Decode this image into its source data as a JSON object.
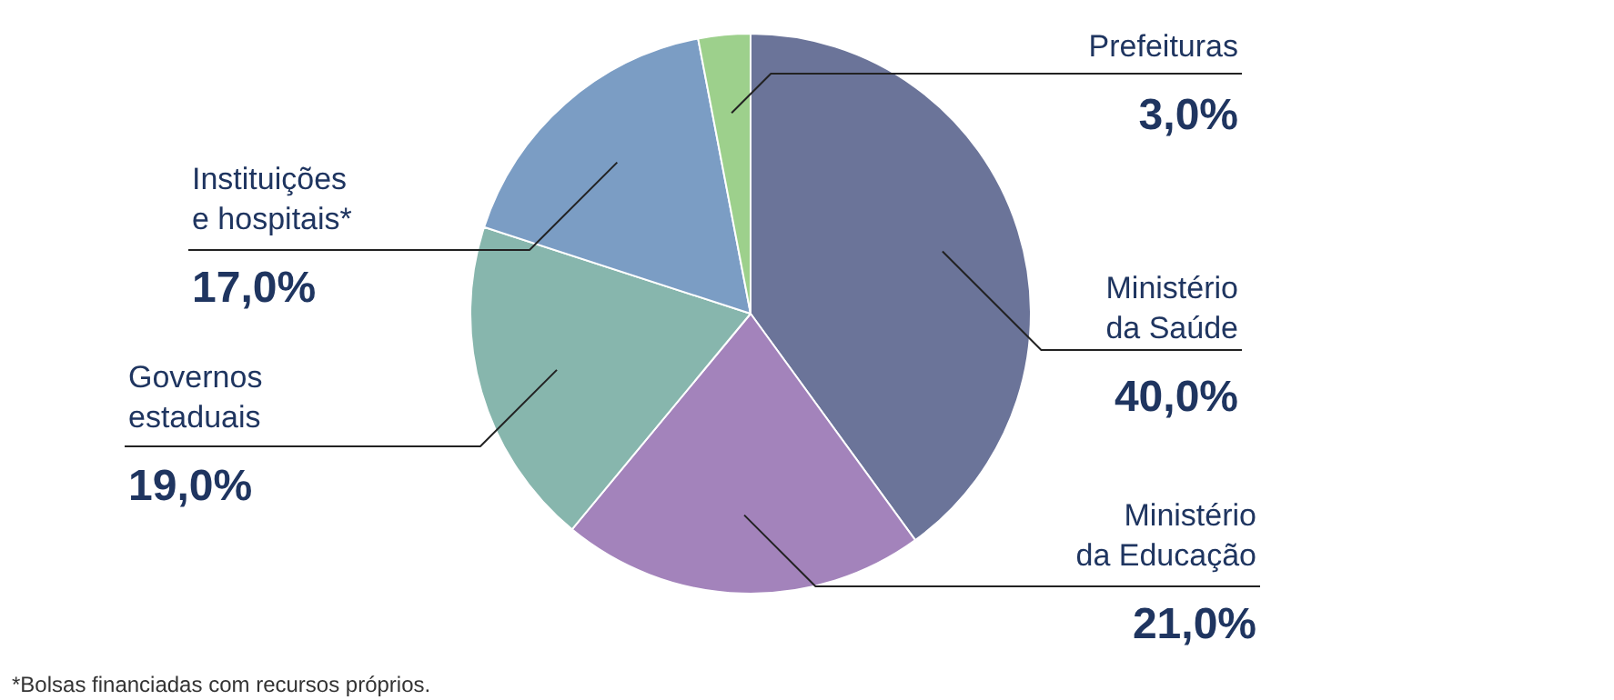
{
  "chart_data": {
    "type": "pie",
    "categories": [
      "Ministério\nda Saúde",
      "Ministério\nda Educação",
      "Governos\nestaduais",
      "Instituições\ne hospitais*",
      "Prefeituras"
    ],
    "values": [
      40.0,
      21.0,
      19.0,
      17.0,
      3.0
    ],
    "colors": [
      "#6b7499",
      "#a383bb",
      "#87b6ad",
      "#7b9dc4",
      "#9dd08c"
    ],
    "value_labels": [
      "40,0%",
      "21,0%",
      "19,0%",
      "17,0%",
      "3,0%"
    ],
    "annotations": [
      "*Bolsas financiadas com recursos próprios."
    ]
  }
}
